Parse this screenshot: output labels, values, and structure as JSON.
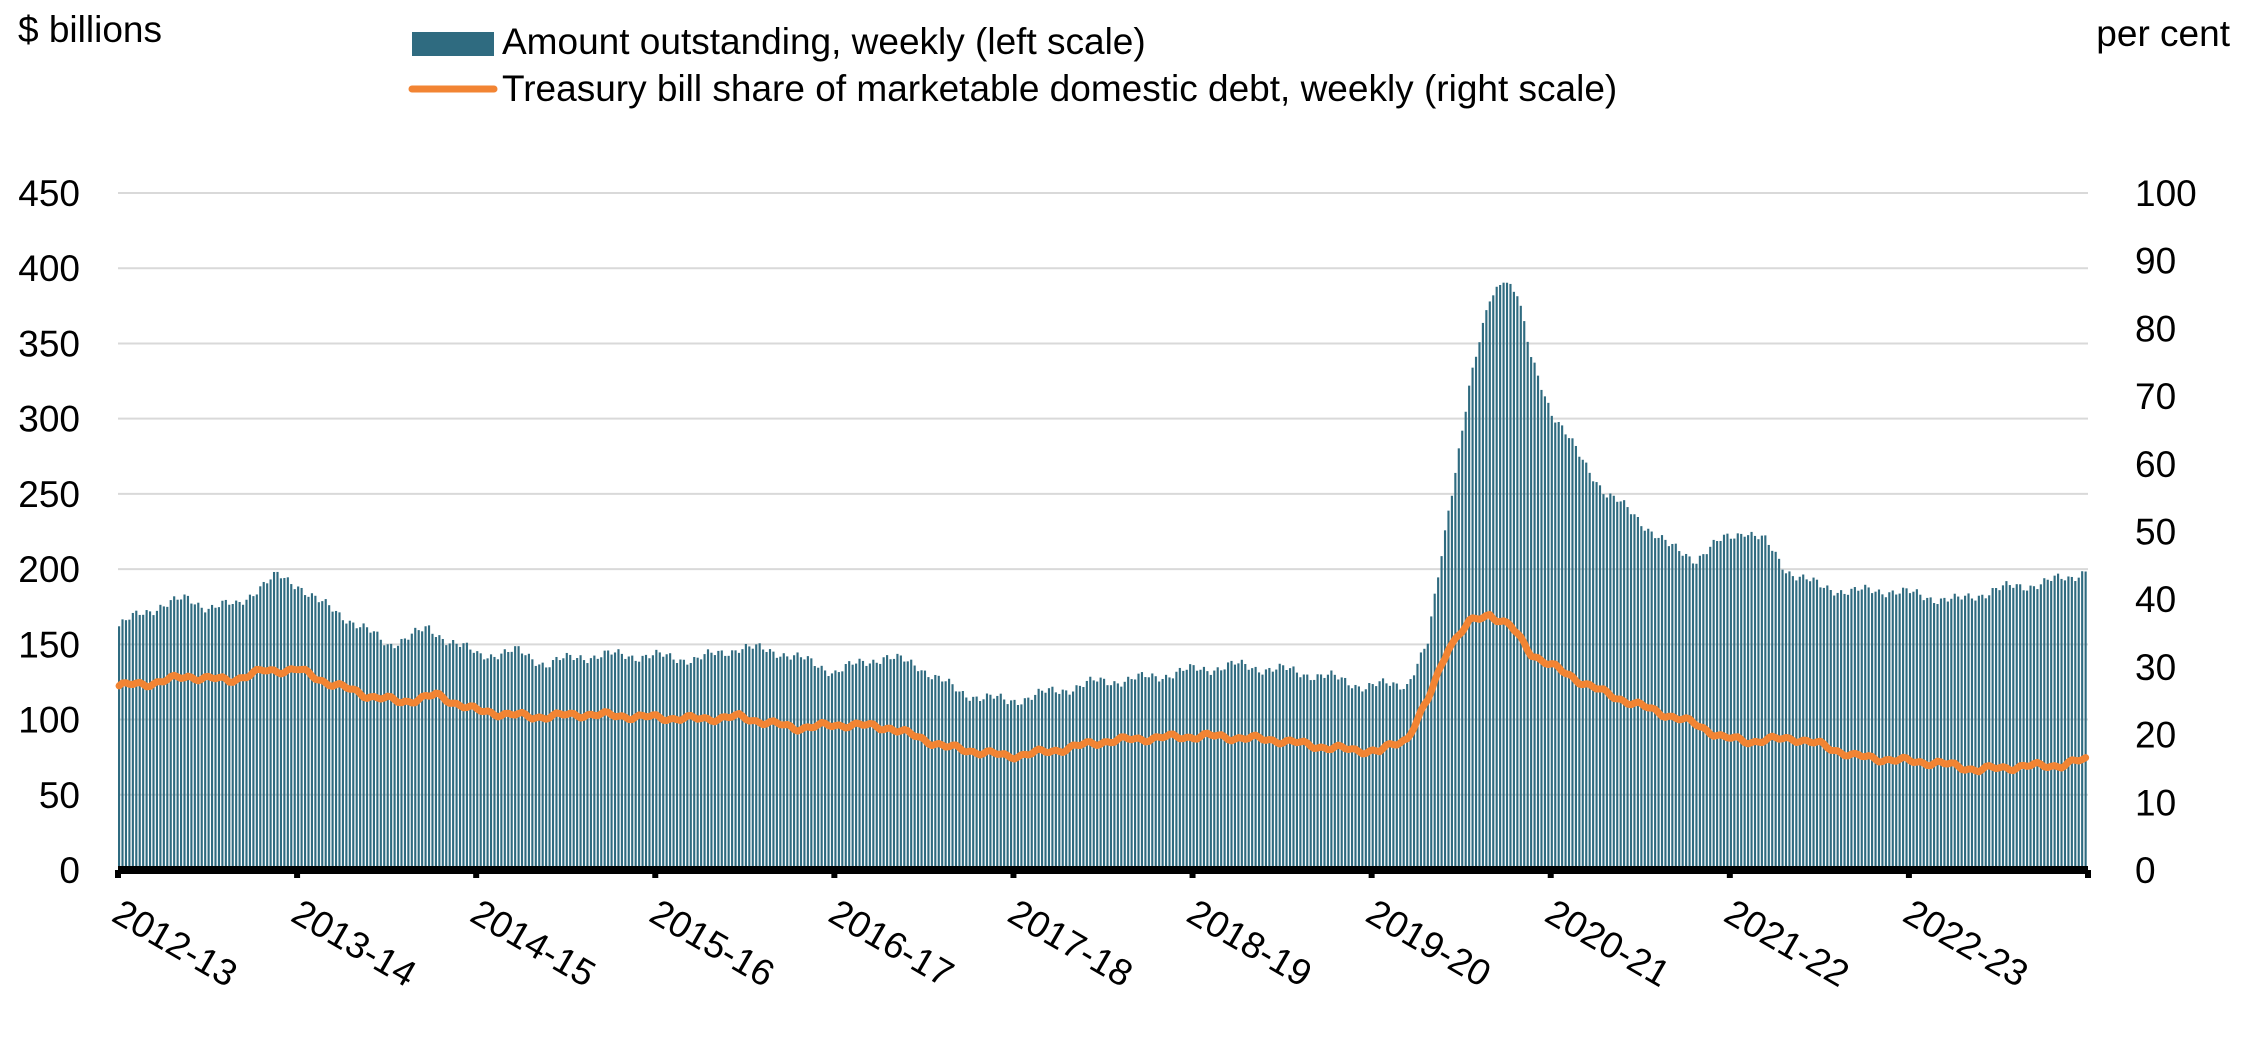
{
  "chart_data": {
    "type": "bar+line",
    "left_unit": "$ billions",
    "right_unit": "per cent",
    "left_ylim": [
      0,
      450
    ],
    "left_ticks": [
      "0",
      "50",
      "100",
      "150",
      "200",
      "250",
      "300",
      "350",
      "400",
      "450"
    ],
    "right_ylim": [
      0,
      100
    ],
    "right_ticks": [
      "0",
      "10",
      "20",
      "30",
      "40",
      "50",
      "60",
      "70",
      "80",
      "90",
      "100"
    ],
    "categories": [
      "2012-13",
      "2013-14",
      "2014-15",
      "2015-16",
      "2016-17",
      "2017-18",
      "2018-19",
      "2019-20",
      "2020-21",
      "2021-22",
      "2022-23"
    ],
    "weeks_per_year": 52,
    "grid": true,
    "legend_position": "top",
    "series": [
      {
        "name": "Amount outstanding, weekly (left scale)",
        "type": "bar",
        "axis": "left",
        "color": "#2f6b80",
        "anchors": [
          [
            0,
            162
          ],
          [
            6,
            170
          ],
          [
            12,
            176
          ],
          [
            20,
            180
          ],
          [
            26,
            175
          ],
          [
            34,
            176
          ],
          [
            40,
            187
          ],
          [
            46,
            195
          ],
          [
            52,
            190
          ],
          [
            58,
            178
          ],
          [
            66,
            168
          ],
          [
            78,
            150
          ],
          [
            90,
            160
          ],
          [
            104,
            143
          ],
          [
            116,
            145
          ],
          [
            124,
            137
          ],
          [
            134,
            142
          ],
          [
            146,
            143
          ],
          [
            156,
            142
          ],
          [
            168,
            140
          ],
          [
            180,
            148
          ],
          [
            192,
            145
          ],
          [
            208,
            132
          ],
          [
            222,
            142
          ],
          [
            232,
            136
          ],
          [
            244,
            118
          ],
          [
            258,
            112
          ],
          [
            270,
            118
          ],
          [
            284,
            125
          ],
          [
            296,
            127
          ],
          [
            312,
            133
          ],
          [
            324,
            136
          ],
          [
            338,
            133
          ],
          [
            352,
            128
          ],
          [
            362,
            122
          ],
          [
            374,
            124
          ],
          [
            380,
            150
          ],
          [
            386,
            240
          ],
          [
            392,
            320
          ],
          [
            398,
            380
          ],
          [
            402,
            395
          ],
          [
            406,
            382
          ],
          [
            410,
            340
          ],
          [
            416,
            305
          ],
          [
            424,
            275
          ],
          [
            432,
            250
          ],
          [
            440,
            236
          ],
          [
            450,
            215
          ],
          [
            458,
            207
          ],
          [
            466,
            220
          ],
          [
            472,
            226
          ],
          [
            478,
            218
          ],
          [
            484,
            200
          ],
          [
            494,
            188
          ],
          [
            504,
            185
          ],
          [
            514,
            186
          ],
          [
            524,
            182
          ],
          [
            534,
            179
          ],
          [
            544,
            186
          ],
          [
            556,
            190
          ],
          [
            566,
            194
          ],
          [
            572,
            201
          ]
        ],
        "bar_count": 572
      },
      {
        "name": "Treasury bill share of marketable domestic debt, weekly (right scale)",
        "type": "line",
        "axis": "right",
        "color": "#f28433",
        "anchors": [
          [
            0,
            27.2
          ],
          [
            8,
            27.5
          ],
          [
            20,
            28.6
          ],
          [
            32,
            28
          ],
          [
            42,
            29.4
          ],
          [
            52,
            29.6
          ],
          [
            60,
            27.8
          ],
          [
            72,
            25.8
          ],
          [
            82,
            24.8
          ],
          [
            92,
            25.8
          ],
          [
            104,
            23.5
          ],
          [
            120,
            22.6
          ],
          [
            136,
            23
          ],
          [
            152,
            22.6
          ],
          [
            168,
            22.3
          ],
          [
            180,
            22.6
          ],
          [
            196,
            21
          ],
          [
            212,
            21.5
          ],
          [
            224,
            21
          ],
          [
            240,
            18.2
          ],
          [
            258,
            16.8
          ],
          [
            270,
            17.5
          ],
          [
            286,
            19
          ],
          [
            300,
            19.5
          ],
          [
            316,
            19.8
          ],
          [
            336,
            19.2
          ],
          [
            352,
            18
          ],
          [
            366,
            17.5
          ],
          [
            374,
            19.5
          ],
          [
            380,
            25
          ],
          [
            386,
            33
          ],
          [
            392,
            36.5
          ],
          [
            398,
            37.8
          ],
          [
            404,
            36
          ],
          [
            410,
            32
          ],
          [
            420,
            29
          ],
          [
            432,
            26
          ],
          [
            446,
            23.5
          ],
          [
            458,
            21.5
          ],
          [
            466,
            19.5
          ],
          [
            474,
            19
          ],
          [
            486,
            19.5
          ],
          [
            494,
            18.5
          ],
          [
            504,
            16.8
          ],
          [
            516,
            16.2
          ],
          [
            528,
            15.8
          ],
          [
            540,
            14.8
          ],
          [
            552,
            15.3
          ],
          [
            564,
            15.5
          ],
          [
            572,
            16.4
          ]
        ]
      }
    ]
  }
}
